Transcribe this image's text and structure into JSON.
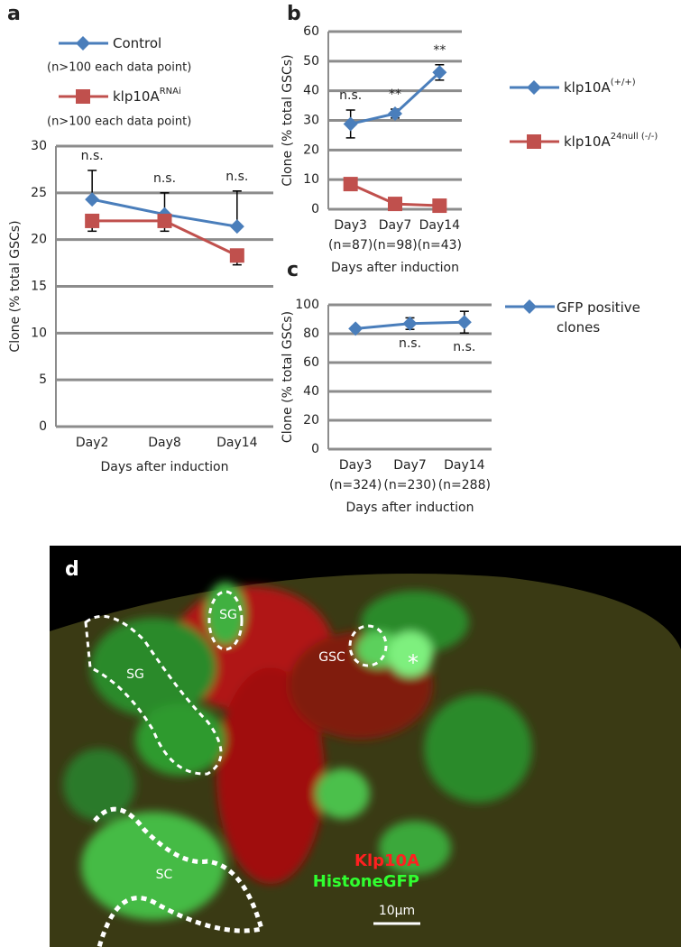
{
  "panel_labels": [
    "a",
    "b",
    "c",
    "d"
  ],
  "chart_data": [
    {
      "type": "line",
      "ylabel": "Clone (% total GSCs)",
      "xlabel": "Days after induction",
      "categories": [
        "Day2",
        "Day8",
        "Day14"
      ],
      "series": [
        {
          "name": "Control",
          "note": "(n>100 each data point)",
          "color": "#4a7ebb",
          "marker": "diamond",
          "values": [
            24.3,
            22.7,
            21.4
          ],
          "errors": [
            3.1,
            2.3,
            3.8
          ],
          "error_direction": "up"
        },
        {
          "name": "klp10A",
          "name_sup": "RNAi",
          "note": "(n>100 each data point)",
          "color": "#c0504d",
          "marker": "square",
          "values": [
            22,
            22,
            18.3
          ],
          "errors": [
            1.1,
            1.1,
            1.0
          ],
          "error_direction": "down"
        }
      ],
      "annotations": [
        "n.s.",
        "n.s.",
        "n.s."
      ],
      "annotation_position": "above",
      "ylim": [
        0,
        30
      ],
      "yticks": [
        0,
        5,
        10,
        15,
        20,
        25,
        30
      ],
      "grid": true
    },
    {
      "type": "line",
      "ylabel": "Clone (% total GSCs)",
      "xlabel": "Days after induction",
      "categories": [
        "Day3",
        "Day7",
        "Day14"
      ],
      "category_notes": [
        "(n=87)",
        "(n=98)",
        "(n=43)"
      ],
      "series": [
        {
          "name": "klp10A",
          "name_sup": "(+/+)",
          "color": "#4a7ebb",
          "marker": "diamond",
          "values": [
            28.8,
            32.3,
            46.2
          ],
          "errors": [
            4.7,
            1.5,
            2.6
          ],
          "error_direction": "both"
        },
        {
          "name": "klp10A",
          "name_sup": "24null (-/-)",
          "color": "#c0504d",
          "marker": "square",
          "values": [
            8.5,
            1.8,
            1.2
          ],
          "errors": [
            0.8,
            0.5,
            0.3
          ],
          "error_direction": "both"
        }
      ],
      "annotations": [
        "n.s.",
        "**",
        "**"
      ],
      "annotation_position": "above",
      "ylim": [
        0,
        60
      ],
      "yticks": [
        0,
        10,
        20,
        30,
        40,
        50,
        60
      ],
      "grid": true
    },
    {
      "type": "line",
      "ylabel": "Clone (% total GSCs)",
      "xlabel": "Days after induction",
      "categories": [
        "Day3",
        "Day7",
        "Day14"
      ],
      "category_notes": [
        "(n=324)",
        "(n=230)",
        "(n=288)"
      ],
      "series": [
        {
          "name": "GFP positive clones",
          "color": "#4a7ebb",
          "marker": "diamond",
          "values": [
            83.5,
            87,
            88
          ],
          "errors": [
            1.5,
            4,
            7.5
          ],
          "error_direction": "both"
        }
      ],
      "annotations": [
        null,
        "n.s.",
        "n.s."
      ],
      "annotation_position": "below",
      "ylim": [
        0,
        100
      ],
      "yticks": [
        0,
        20,
        40,
        60,
        80,
        100
      ],
      "grid": true
    }
  ],
  "image": {
    "labels": [
      "SG",
      "SG",
      "GSC",
      "*",
      "SC"
    ],
    "channels": [
      "Klp10A",
      "HistoneGFP"
    ],
    "scale_bar": "10μm"
  }
}
